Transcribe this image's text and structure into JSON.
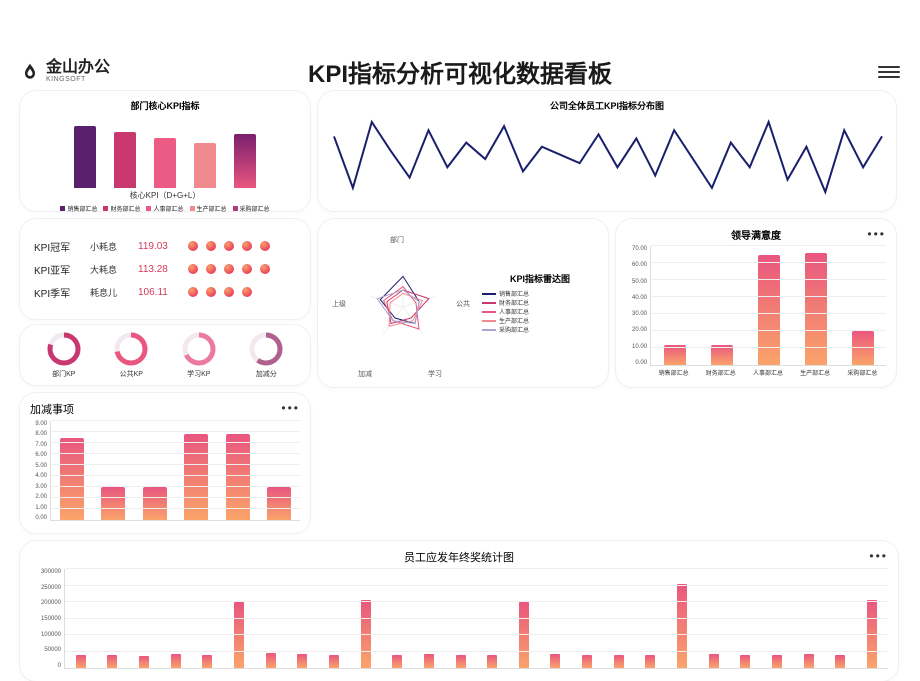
{
  "brand": {
    "cn": "金山办公",
    "en": "KINGSOFT"
  },
  "title": "KPI指标分析可视化数据看板",
  "palette": {
    "gradient_bar": [
      "#e94f7a",
      "#faa46a"
    ],
    "purple": "#6b2a7a",
    "magenta": "#c8386f",
    "pink": "#e9567f",
    "pink2": "#ec7aa0",
    "salmon": "#f08a8f",
    "navy": "#1a1f6b",
    "axis": "#dddddd",
    "grid": "#eeeeee"
  },
  "dept_kpi": {
    "title": "部门核心KPI指标",
    "sub": "核心KPI（D+G+L）",
    "categories": [
      "销售部汇总",
      "财务部汇总",
      "人事部汇总",
      "生产部汇总",
      "采购部汇总"
    ],
    "values": [
      90,
      82,
      72,
      65,
      78
    ],
    "colors": [
      "#5a1f6d",
      "#c8386f",
      "#ec5b83",
      "#f08a8f",
      "linear-gradient(180deg,#7a1f6d,#e9567f)"
    ],
    "legend_colors": [
      "#5a1f6d",
      "#c8386f",
      "#ec5b83",
      "#f08a8f",
      "#b23a7f"
    ]
  },
  "spark": {
    "title": "公司全体员工KPI指标分布图",
    "color": "#1a1f6b",
    "points": [
      55,
      30,
      62,
      48,
      35,
      58,
      40,
      52,
      44,
      60,
      38,
      50,
      46,
      42,
      56,
      40,
      54,
      36,
      58,
      44,
      30,
      52,
      40,
      62,
      34,
      50,
      28,
      58,
      40,
      55
    ]
  },
  "rank": {
    "rows": [
      {
        "label": "KPI冠军",
        "name": "小耗息",
        "value": "119.03",
        "dots": 5
      },
      {
        "label": "KPI亚军",
        "name": "大耗息",
        "value": "113.28",
        "dots": 5
      },
      {
        "label": "KPI季军",
        "name": "耗息儿",
        "value": "106.11",
        "dots": 4
      }
    ],
    "dot_gradient": [
      "#e61e54",
      "#f7a06a"
    ]
  },
  "radar": {
    "title": "KPI指标雷达图",
    "axes": [
      "部门",
      "公共",
      "学习",
      "加减",
      "上级"
    ],
    "series": [
      {
        "name": "销售部汇总",
        "color": "#1a1f6b"
      },
      {
        "name": "财务部汇总",
        "color": "#c8386f"
      },
      {
        "name": "人事部汇总",
        "color": "#e9567f"
      },
      {
        "name": "生产部汇总",
        "color": "#f08a8f"
      },
      {
        "name": "采购部汇总",
        "color": "#a7a7d0"
      }
    ]
  },
  "satisfaction": {
    "title": "领导满意度",
    "ylim": [
      0,
      70
    ],
    "ytick_step": 10,
    "categories": [
      "销售部汇总",
      "财务部汇总",
      "人事部汇总",
      "生产部汇总",
      "采购部汇总"
    ],
    "values": [
      12,
      12,
      65,
      66,
      20
    ],
    "bar_gradient": [
      "#e9567f",
      "#faa46a"
    ]
  },
  "donuts": {
    "items": [
      {
        "label": "部门KP",
        "pct": 0.8,
        "color": "#c8386f"
      },
      {
        "label": "公共KP",
        "pct": 0.72,
        "color": "#e9567f"
      },
      {
        "label": "学习KP",
        "pct": 0.68,
        "color": "#ec7aa0"
      },
      {
        "label": "加减分",
        "pct": 0.6,
        "color": "#b05f8f"
      }
    ],
    "track": "#f2e9f0"
  },
  "addsub": {
    "title": "加减事项",
    "ylim": [
      0,
      9
    ],
    "yticks": [
      0,
      1,
      2,
      3,
      4,
      5,
      6,
      7,
      8,
      9
    ],
    "values": [
      7.5,
      3.0,
      3.0,
      7.8,
      7.8,
      3.0
    ],
    "bar_gradient": [
      "#e9567f",
      "#faa46a"
    ]
  },
  "bonus": {
    "title": "员工应发年终奖统计图",
    "ylim": [
      0,
      300000
    ],
    "ytick_step": 50000,
    "values": [
      38000,
      40000,
      36000,
      42000,
      38000,
      200000,
      45000,
      42000,
      40000,
      205000,
      38000,
      42000,
      40000,
      40000,
      200000,
      42000,
      40000,
      38000,
      40000,
      255000,
      42000,
      38000,
      40000,
      42000,
      40000,
      205000
    ],
    "bar_gradient": [
      "#e9567f",
      "#faa46a"
    ]
  }
}
